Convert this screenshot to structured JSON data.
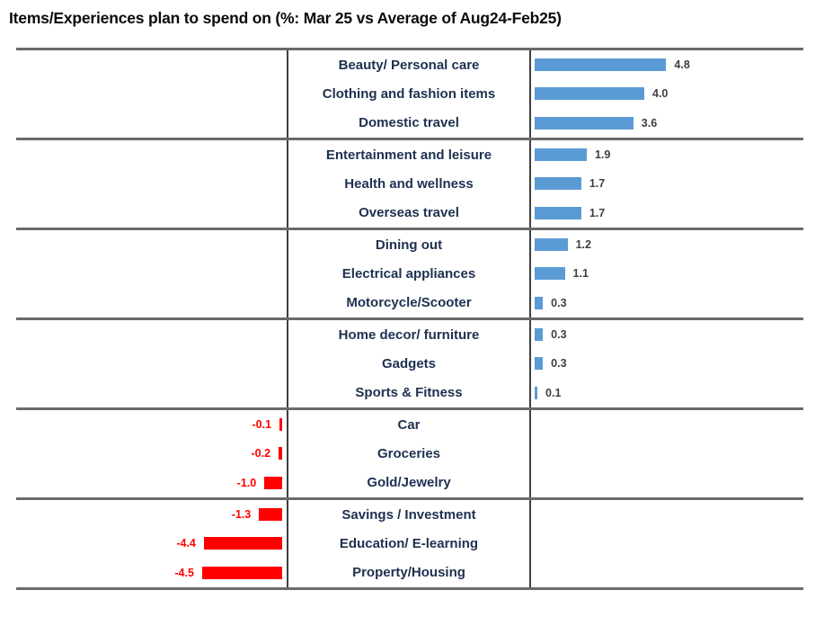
{
  "title": "Items/Experiences plan to spend on (%: Mar 25 vs Average of Aug24-Feb25)",
  "chart_data": {
    "type": "bar",
    "orientation": "horizontal",
    "title": "Items/Experiences plan to spend on (%: Mar 25 vs Average of Aug24-Feb25)",
    "value_unit": "%",
    "value_format": "one_decimal",
    "positive_color": "#5B9BD5",
    "negative_color": "#FF0000",
    "positive_value_text_color": "#3F3F3F",
    "negative_value_text_color": "#FF0000",
    "category_text_color": "#1E3050",
    "gridline_color": "#6A6A6A",
    "legend": "none",
    "axes": "none (data labels only)",
    "layout": {
      "positive_bars": "right of center category column, growing rightward",
      "negative_bars": "left of center category column, growing leftward",
      "groups_separated_by_horizontal_lines": true,
      "rows_per_group": 3
    },
    "groups": [
      {
        "items": [
          {
            "label": "Beauty/ Personal care",
            "value": 4.8
          },
          {
            "label": "Clothing and fashion items",
            "value": 4.0
          },
          {
            "label": "Domestic travel",
            "value": 3.6
          }
        ]
      },
      {
        "items": [
          {
            "label": "Entertainment and leisure",
            "value": 1.9
          },
          {
            "label": "Health and wellness",
            "value": 1.7
          },
          {
            "label": "Overseas travel",
            "value": 1.7
          }
        ]
      },
      {
        "items": [
          {
            "label": "Dining out",
            "value": 1.2
          },
          {
            "label": "Electrical appliances",
            "value": 1.1
          },
          {
            "label": "Motorcycle/Scooter",
            "value": 0.3
          }
        ]
      },
      {
        "items": [
          {
            "label": "Home decor/ furniture",
            "value": 0.3
          },
          {
            "label": "Gadgets",
            "value": 0.3
          },
          {
            "label": "Sports & Fitness",
            "value": 0.1
          }
        ]
      },
      {
        "items": [
          {
            "label": "Car",
            "value": -0.1
          },
          {
            "label": "Groceries",
            "value": -0.2
          },
          {
            "label": "Gold/Jewelry",
            "value": -1.0
          }
        ]
      },
      {
        "items": [
          {
            "label": "Savings / Investment",
            "value": -1.3
          },
          {
            "label": "Education/ E-learning",
            "value": -4.4
          },
          {
            "label": "Property/Housing",
            "value": -4.5
          }
        ]
      }
    ]
  }
}
